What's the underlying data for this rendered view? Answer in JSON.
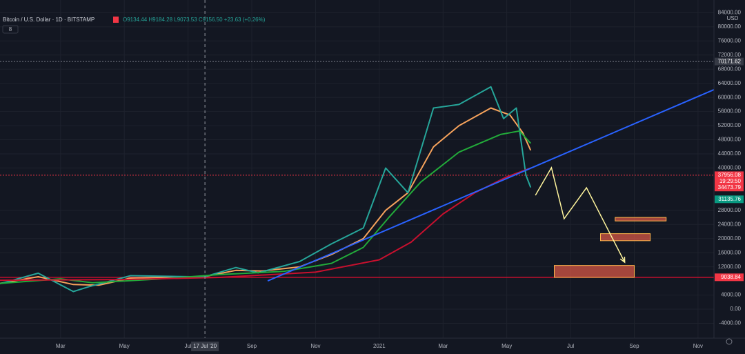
{
  "chart_data": {
    "type": "line",
    "title": "Bitcoin / U.S. Dollar · 1D · BITSTAMP",
    "subtitle": "O9134.44 H9184.28 L9073.53 C9156.50 +23.63 (+0.26%)",
    "indicator_count": "8",
    "y_unit": "USD",
    "grid": true,
    "xlim": [
      0.1,
      22.5
    ],
    "ylim": [
      -8200,
      87600
    ],
    "xticks": [
      {
        "value": 2,
        "label": "Mar"
      },
      {
        "value": 4,
        "label": "May"
      },
      {
        "value": 6,
        "label": "Jul"
      },
      {
        "value": 8,
        "label": "Sep"
      },
      {
        "value": 10,
        "label": "Nov"
      },
      {
        "value": 12,
        "label": "2021"
      },
      {
        "value": 14,
        "label": "Mar"
      },
      {
        "value": 16,
        "label": "May"
      },
      {
        "value": 18,
        "label": "Jul"
      },
      {
        "value": 20,
        "label": "Sep"
      },
      {
        "value": 22,
        "label": "Nov"
      }
    ],
    "yticks": [
      {
        "value": 84000,
        "label": "84000.00"
      },
      {
        "value": 80000,
        "label": "80000.00"
      },
      {
        "value": 76000,
        "label": "76000.00"
      },
      {
        "value": 72000,
        "label": "72000.00"
      },
      {
        "value": 68000,
        "label": "68000.00"
      },
      {
        "value": 64000,
        "label": "64000.00"
      },
      {
        "value": 60000,
        "label": "60000.00"
      },
      {
        "value": 56000,
        "label": "56000.00"
      },
      {
        "value": 52000,
        "label": "52000.00"
      },
      {
        "value": 48000,
        "label": "48000.00"
      },
      {
        "value": 44000,
        "label": "44000.00"
      },
      {
        "value": 40000,
        "label": "40000.00"
      },
      {
        "value": 28000,
        "label": "28000.00"
      },
      {
        "value": 24000,
        "label": "24000.00"
      },
      {
        "value": 20000,
        "label": "20000.00"
      },
      {
        "value": 16000,
        "label": "16000.00"
      },
      {
        "value": 12000,
        "label": "12000.00"
      },
      {
        "value": 4000,
        "label": "4000.00"
      },
      {
        "value": 0,
        "label": "0.00"
      },
      {
        "value": -4000,
        "label": "-4000.00"
      }
    ],
    "crosshair": {
      "value": 6.53,
      "label": "17 Jul '20"
    },
    "series": [
      {
        "color": "#f7a35c",
        "x": [
          0.1,
          1.3,
          2.4,
          3.2,
          4.2,
          6.5,
          7.5,
          8.3,
          9.5,
          10.5,
          11.5,
          12.2,
          12.9,
          13.7,
          14.5,
          15.5,
          16.1,
          16.5,
          16.75
        ],
        "values": [
          7300,
          9200,
          7000,
          6800,
          8800,
          9200,
          11000,
          10800,
          12000,
          15500,
          20000,
          28000,
          33000,
          46000,
          52000,
          57000,
          55000,
          50000,
          45000
        ]
      },
      {
        "color": "#26a69a",
        "x": [
          0.1,
          1.3,
          2.4,
          2.9,
          4.2,
          5.5,
          6.5,
          7.5,
          8.2,
          9.5,
          10.5,
          11.5,
          12.2,
          12.9,
          13.7,
          14.5,
          15.5,
          15.9,
          16.3,
          16.6,
          16.75
        ],
        "values": [
          7200,
          10200,
          5000,
          6400,
          9500,
          9300,
          9150,
          11800,
          10300,
          13500,
          18500,
          23000,
          40000,
          33000,
          57000,
          58000,
          63000,
          54000,
          57000,
          38000,
          34500
        ]
      },
      {
        "color": "#22ab3a",
        "x": [
          0.1,
          2,
          3,
          5,
          7,
          9,
          10.5,
          11.5,
          12.3,
          13.3,
          14.5,
          15.8,
          16.4,
          16.75
        ],
        "values": [
          7300,
          8600,
          7500,
          8500,
          9800,
          10700,
          13000,
          17500,
          26000,
          36000,
          44500,
          49500,
          50500,
          47000
        ]
      },
      {
        "color": "#c8102e",
        "x": [
          0.1,
          4,
          7,
          10,
          12,
          13,
          14,
          15,
          16,
          16.75
        ],
        "values": [
          8200,
          8400,
          9000,
          10500,
          14000,
          19000,
          27000,
          33000,
          37500,
          40000
        ]
      },
      {
        "color": "#2962ff",
        "x": [
          8.5,
          22.5
        ],
        "values": [
          8000,
          62200
        ]
      }
    ],
    "horizontal_lines": [
      {
        "value": 9038.84,
        "color": "#c8102e",
        "dash": false
      },
      {
        "value": 70171.62,
        "color": "#787b86",
        "dash": true
      },
      {
        "value": 37956.08,
        "color": "#f23645",
        "dash": true
      }
    ],
    "price_labels": [
      {
        "value": 70171.62,
        "color": "#363a45"
      },
      {
        "value": 37956.08,
        "color": "#f23645",
        "countdown": "19:29:50"
      },
      {
        "value": 34473.79,
        "color": "#f23645"
      },
      {
        "value": 31135.76,
        "color": "#089981"
      },
      {
        "value": 9038.84,
        "color": "#f23645"
      }
    ],
    "zones": [
      {
        "x": [
          17.49,
          20.0
        ],
        "y": [
          9000,
          12400
        ]
      },
      {
        "x": [
          18.94,
          20.5
        ],
        "y": [
          19400,
          21400
        ]
      },
      {
        "x": [
          19.4,
          21.0
        ],
        "y": [
          25000,
          26000
        ]
      }
    ],
    "arrow_path": {
      "color": "#fff59d",
      "x": [
        16.9,
        17.4,
        17.8,
        18.5,
        19.7
      ],
      "values": [
        32274,
        40098,
        25623,
        34425,
        13300
      ]
    }
  }
}
